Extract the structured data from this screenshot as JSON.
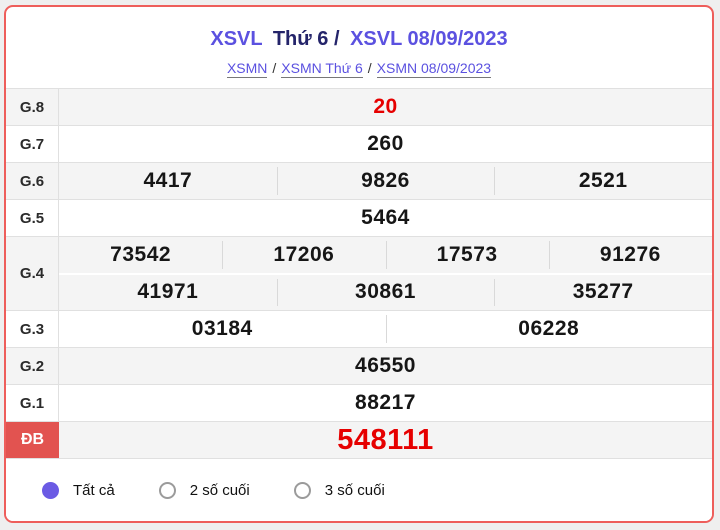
{
  "header": {
    "title": {
      "brand": "XSVL",
      "middle": "Thứ 6 /",
      "date_part": "XSVL 08/09/2023"
    },
    "breadcrumb": [
      "XSMN",
      "XSMN Thứ 6",
      "XSMN 08/09/2023"
    ],
    "breadcrumb_separator": "/"
  },
  "results": {
    "rows": [
      {
        "label": "G.8",
        "cells": [
          "20"
        ],
        "highlight": true
      },
      {
        "label": "G.7",
        "cells": [
          "260"
        ]
      },
      {
        "label": "G.6",
        "cells": [
          "4417",
          "9826",
          "2521"
        ]
      },
      {
        "label": "G.5",
        "cells": [
          "5464"
        ]
      },
      {
        "label": "G.4",
        "lines": [
          [
            "73542",
            "17206",
            "17573",
            "91276"
          ],
          [
            "41971",
            "30861",
            "35277"
          ]
        ]
      },
      {
        "label": "G.3",
        "cells": [
          "03184",
          "06228"
        ]
      },
      {
        "label": "G.2",
        "cells": [
          "46550"
        ]
      },
      {
        "label": "G.1",
        "cells": [
          "88217"
        ]
      },
      {
        "label": "ĐB",
        "cells": [
          "548111"
        ],
        "special": true
      }
    ]
  },
  "filters": {
    "options": [
      {
        "label": "Tất cả",
        "selected": true
      },
      {
        "label": "2 số cuối",
        "selected": false
      },
      {
        "label": "3 số cuối",
        "selected": false
      }
    ]
  },
  "colors": {
    "accent_purple": "#5b51e0",
    "title_navy": "#24246a",
    "value_red": "#e60000",
    "special_bg": "#e25350",
    "radio_selected": "#6b5be4",
    "card_border": "#ee5e5b",
    "row_alt_bg": "#f4f4f4"
  }
}
